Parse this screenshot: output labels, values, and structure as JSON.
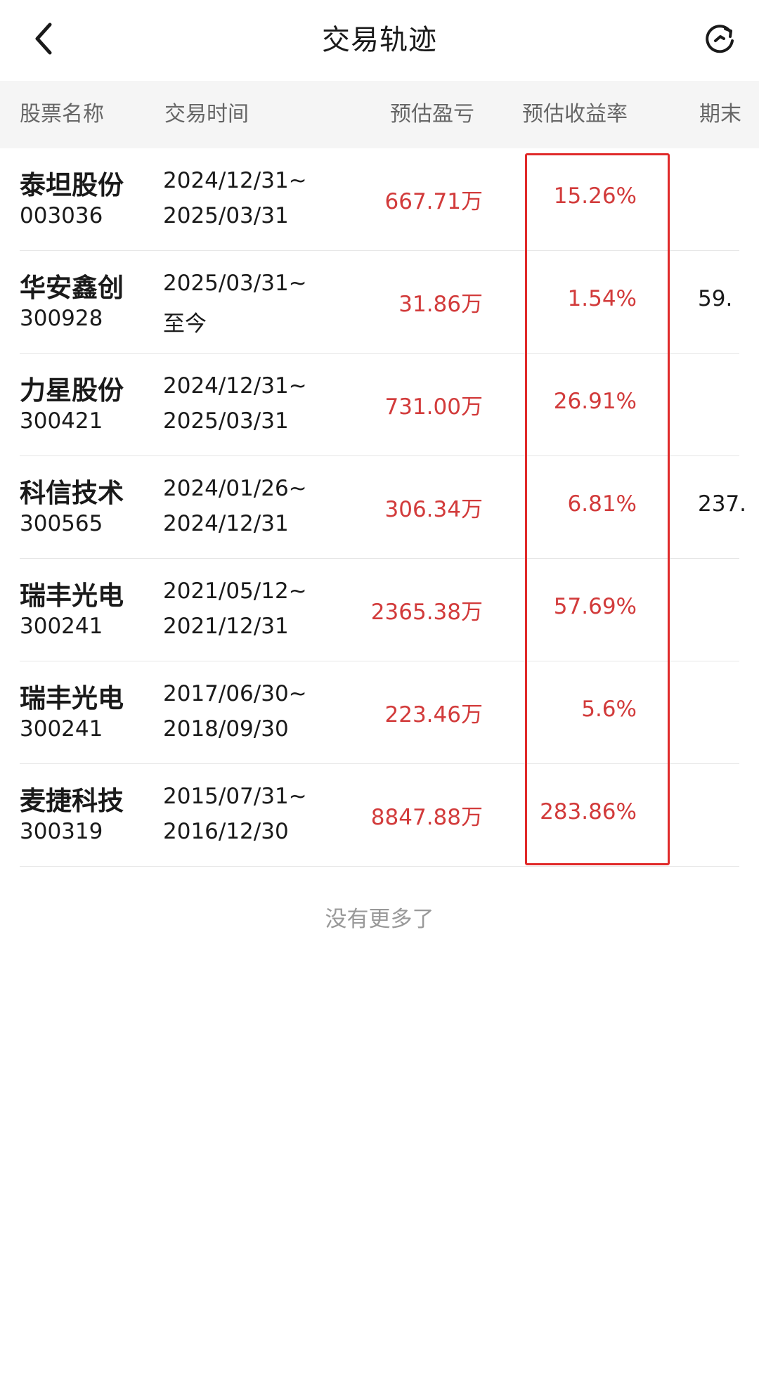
{
  "header": {
    "title": "交易轨迹",
    "back_icon": "chevron-left-icon",
    "refresh_icon": "refresh-icon"
  },
  "table": {
    "columns": [
      "股票名称",
      "交易时间",
      "预估盈亏",
      "预估收益率",
      "期末"
    ],
    "rows": [
      {
        "name": "泰坦股份",
        "code": "003036",
        "start": "2024/12/31~",
        "end": "2025/03/31",
        "pnl": "667.71万",
        "rate": "15.26%",
        "end_value": ""
      },
      {
        "name": "华安鑫创",
        "code": "300928",
        "start": "2025/03/31~",
        "end": "至今",
        "pnl": "31.86万",
        "rate": "1.54%",
        "end_value": "59."
      },
      {
        "name": "力星股份",
        "code": "300421",
        "start": "2024/12/31~",
        "end": "2025/03/31",
        "pnl": "731.00万",
        "rate": "26.91%",
        "end_value": ""
      },
      {
        "name": "科信技术",
        "code": "300565",
        "start": "2024/01/26~",
        "end": "2024/12/31",
        "pnl": "306.34万",
        "rate": "6.81%",
        "end_value": "237."
      },
      {
        "name": "瑞丰光电",
        "code": "300241",
        "start": "2021/05/12~",
        "end": "2021/12/31",
        "pnl": "2365.38万",
        "rate": "57.69%",
        "end_value": ""
      },
      {
        "name": "瑞丰光电",
        "code": "300241",
        "start": "2017/06/30~",
        "end": "2018/09/30",
        "pnl": "223.46万",
        "rate": "5.6%",
        "end_value": ""
      },
      {
        "name": "麦捷科技",
        "code": "300319",
        "start": "2015/07/31~",
        "end": "2016/12/30",
        "pnl": "8847.88万",
        "rate": "283.86%",
        "end_value": ""
      }
    ]
  },
  "footer": {
    "no_more": "没有更多了"
  },
  "colors": {
    "profit": "#d23b3b",
    "highlight": "#e02a2a",
    "header_bg": "#f5f5f5"
  }
}
